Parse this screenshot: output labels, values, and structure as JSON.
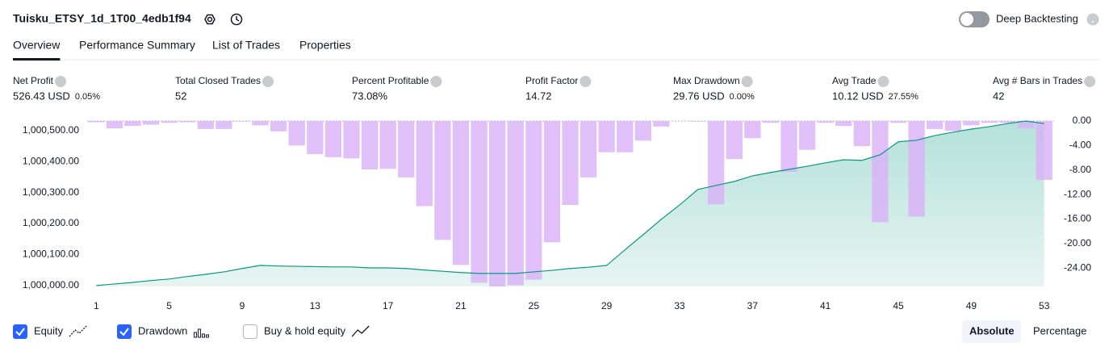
{
  "header": {
    "title": "Tuisku_ETSY_1d_1T00_4edb1f94",
    "toggle_label": "Deep Backtesting",
    "toggle_on": false
  },
  "tabs": {
    "items": [
      "Overview",
      "Performance Summary",
      "List of Trades",
      "Properties"
    ],
    "active": 0
  },
  "stats": [
    {
      "label": "Net Profit",
      "value": "526.43 USD",
      "percent": "0.05%",
      "tone": "positive"
    },
    {
      "label": "Total Closed Trades",
      "value": "52",
      "tone": "neutral"
    },
    {
      "label": "Percent Profitable",
      "value": "73.08%",
      "tone": "positive"
    },
    {
      "label": "Profit Factor",
      "value": "14.72",
      "tone": "positive"
    },
    {
      "label": "Max Drawdown",
      "value": "29.76 USD",
      "percent": "0.00%",
      "tone": "negative"
    },
    {
      "label": "Avg Trade",
      "value": "10.12 USD",
      "percent": "27.55%",
      "tone": "positive"
    },
    {
      "label": "Avg # Bars in Trades",
      "value": "42",
      "tone": "neutral"
    }
  ],
  "chart_data": {
    "type": "combo",
    "x": [
      1,
      2,
      3,
      4,
      5,
      6,
      7,
      8,
      9,
      10,
      11,
      12,
      13,
      14,
      15,
      16,
      17,
      18,
      19,
      20,
      21,
      22,
      23,
      24,
      25,
      26,
      27,
      28,
      29,
      30,
      31,
      32,
      33,
      34,
      35,
      36,
      37,
      38,
      39,
      40,
      41,
      42,
      43,
      44,
      45,
      46,
      47,
      48,
      49,
      50,
      51,
      52,
      53
    ],
    "xlim": [
      0.5,
      53.5
    ],
    "xticks": [
      1,
      5,
      9,
      13,
      17,
      21,
      25,
      29,
      33,
      37,
      41,
      45,
      49,
      53
    ],
    "ylim": [
      999997,
      1000531
    ],
    "yticks": [
      {
        "value": 1000000,
        "label": "1,000,000.00"
      },
      {
        "value": 1000100,
        "label": "1,000,100.00"
      },
      {
        "value": 1000200,
        "label": "1,000,200.00"
      },
      {
        "value": 1000300,
        "label": "1,000,300.00"
      },
      {
        "value": 1000400,
        "label": "1,000,400.00"
      },
      {
        "value": 1000500,
        "label": "1,000,500.00"
      }
    ],
    "y2lim": [
      -27,
      0
    ],
    "y2ticks": [
      {
        "value": 0,
        "label": "0.00"
      },
      {
        "value": -4,
        "label": "-4.00"
      },
      {
        "value": -8,
        "label": "-8.00"
      },
      {
        "value": -12,
        "label": "-12.00"
      },
      {
        "value": -16,
        "label": "-16.00"
      },
      {
        "value": -20,
        "label": "-20.00"
      },
      {
        "value": -24,
        "label": "-24.00"
      }
    ],
    "series": [
      {
        "name": "Equity",
        "type": "area",
        "axis": "y",
        "color": "#089981",
        "visible": true,
        "values": [
          1000000,
          1000005,
          1000010,
          1000016,
          1000021,
          1000029,
          1000036,
          1000044,
          1000055,
          1000065,
          1000063,
          1000062,
          1000061,
          1000060,
          1000060,
          1000057,
          1000057,
          1000055,
          1000050,
          1000046,
          1000042,
          1000039,
          1000039,
          1000039,
          1000044,
          1000049,
          1000055,
          1000059,
          1000065,
          1000115,
          1000164,
          1000214,
          1000260,
          1000310,
          1000323,
          1000336,
          1000354,
          1000365,
          1000375,
          1000385,
          1000396,
          1000406,
          1000404,
          1000422,
          1000464,
          1000469,
          1000484,
          1000495,
          1000505,
          1000513,
          1000523,
          1000531,
          1000523
        ]
      },
      {
        "name": "Drawdown",
        "type": "bar",
        "axis": "y2",
        "color": "#d9b0f7",
        "visible": true,
        "values": [
          -0.2,
          -1.2,
          -0.8,
          -0.6,
          -0.3,
          -0.2,
          -1.3,
          -1.3,
          -0.1,
          -0.7,
          -1.7,
          -4.0,
          -5.4,
          -5.9,
          -6.1,
          -7.9,
          -7.8,
          -9.2,
          -13.9,
          -19.4,
          -23.5,
          -26.4,
          -27.0,
          -26.8,
          -25.9,
          -19.8,
          -13.7,
          -9.2,
          -5.1,
          -5.1,
          -3.2,
          -0.9,
          0,
          -0.1,
          -13.6,
          -6.2,
          -2.8,
          -0.3,
          -8.3,
          -4.7,
          -0.3,
          -0.8,
          -4.1,
          -16.5,
          -0.3,
          -15.6,
          -1.3,
          -1.6,
          -0.7,
          -0.3,
          -0.3,
          -1.2,
          -9.6
        ]
      }
    ],
    "legend_extra": {
      "name": "Buy & hold equity",
      "visible": false
    }
  },
  "modes": {
    "items": [
      "Absolute",
      "Percentage"
    ],
    "active": 0
  }
}
